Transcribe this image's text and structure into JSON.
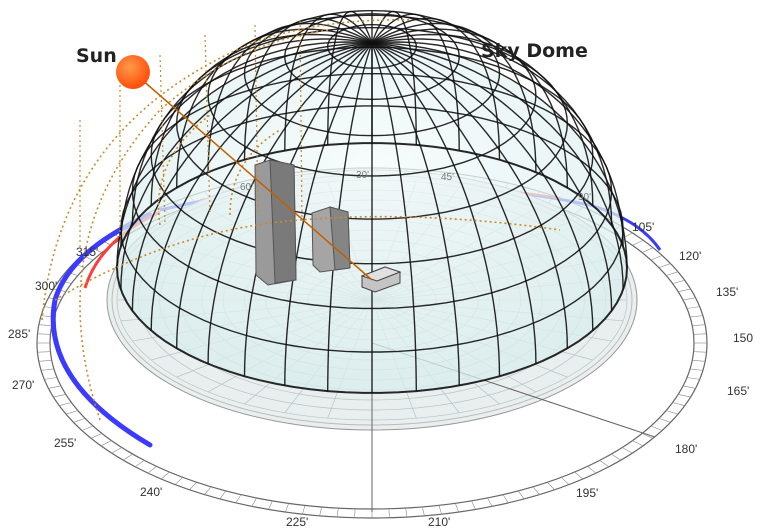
{
  "labels": {
    "sun": "Sun",
    "sky_dome": "Sky Dome"
  },
  "ring_ticks": [
    "105'",
    "120'",
    "135'",
    "150",
    "165'",
    "180'",
    "195'",
    "210'",
    "225'",
    "240'",
    "255'",
    "270'",
    "285'",
    "300'",
    "315'"
  ],
  "inner_ticks": [
    "60'",
    "30'",
    "45'",
    "90'"
  ],
  "colors": {
    "dome_grid": "#111111",
    "dome_fill": "#e4f3f3",
    "sun": "#ff5a14",
    "sun_path": "#c98a2c",
    "ring_blue": "#3b3bff",
    "ring_red": "#ff3b3b",
    "building": "#8f8f8f"
  }
}
